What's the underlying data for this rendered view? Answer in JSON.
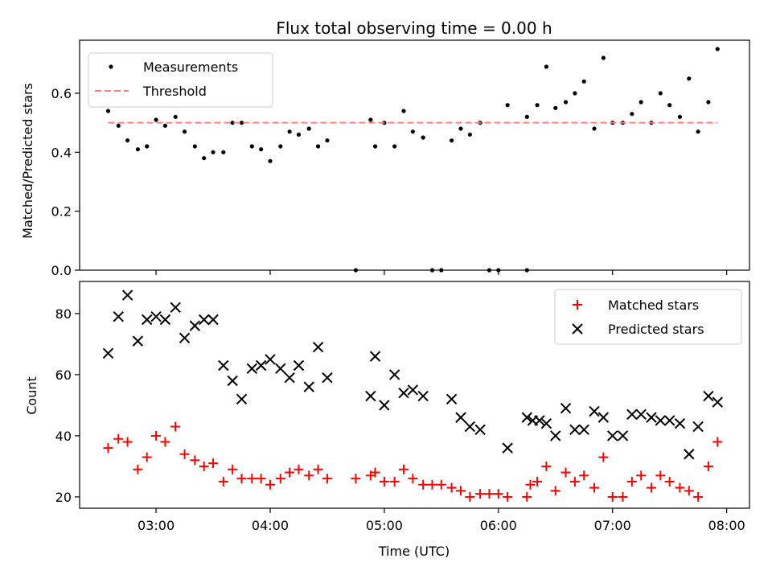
{
  "chart_data": [
    {
      "type": "scatter",
      "title": "Flux total observing time = 0.00 h",
      "xlabel": "",
      "ylabel": "Matched/Predicted stars",
      "xlim": [
        2.33,
        8.2
      ],
      "ylim": [
        0,
        0.78
      ],
      "yticks": [
        0.0,
        0.2,
        0.4,
        0.6
      ],
      "ytick_labels": [
        "0.0",
        "0.2",
        "0.4",
        "0.6"
      ],
      "xticks": [
        3,
        4,
        5,
        6,
        7,
        8
      ],
      "legend": {
        "position": "top-left",
        "entries": [
          "Measurements",
          "Threshold"
        ]
      },
      "colors": {
        "points": "#000000",
        "threshold": "#ff7f7f"
      },
      "series": [
        {
          "name": "Measurements",
          "marker": "dot",
          "points": [
            [
              2.58,
              0.54
            ],
            [
              2.67,
              0.49
            ],
            [
              2.75,
              0.44
            ],
            [
              2.84,
              0.41
            ],
            [
              2.92,
              0.42
            ],
            [
              3.0,
              0.51
            ],
            [
              3.08,
              0.49
            ],
            [
              3.17,
              0.52
            ],
            [
              3.25,
              0.47
            ],
            [
              3.34,
              0.42
            ],
            [
              3.42,
              0.38
            ],
            [
              3.5,
              0.4
            ],
            [
              3.59,
              0.4
            ],
            [
              3.67,
              0.5
            ],
            [
              3.75,
              0.5
            ],
            [
              3.84,
              0.42
            ],
            [
              3.92,
              0.41
            ],
            [
              4.0,
              0.37
            ],
            [
              4.09,
              0.42
            ],
            [
              4.17,
              0.47
            ],
            [
              4.25,
              0.46
            ],
            [
              4.34,
              0.48
            ],
            [
              4.42,
              0.42
            ],
            [
              4.5,
              0.44
            ],
            [
              4.75,
              0.0
            ],
            [
              4.88,
              0.51
            ],
            [
              4.92,
              0.42
            ],
            [
              5.0,
              0.5
            ],
            [
              5.09,
              0.42
            ],
            [
              5.17,
              0.54
            ],
            [
              5.25,
              0.47
            ],
            [
              5.34,
              0.45
            ],
            [
              5.42,
              0.0
            ],
            [
              5.5,
              0.0
            ],
            [
              5.59,
              0.44
            ],
            [
              5.67,
              0.48
            ],
            [
              5.75,
              0.46
            ],
            [
              5.84,
              0.5
            ],
            [
              5.92,
              0.0
            ],
            [
              6.0,
              0.0
            ],
            [
              6.08,
              0.56
            ],
            [
              6.25,
              0.0
            ],
            [
              6.25,
              0.52
            ],
            [
              6.34,
              0.56
            ],
            [
              6.42,
              0.69
            ],
            [
              6.5,
              0.55
            ],
            [
              6.59,
              0.57
            ],
            [
              6.67,
              0.6
            ],
            [
              6.75,
              0.64
            ],
            [
              6.84,
              0.48
            ],
            [
              6.92,
              0.72
            ],
            [
              7.0,
              0.5
            ],
            [
              7.09,
              0.5
            ],
            [
              7.17,
              0.53
            ],
            [
              7.25,
              0.57
            ],
            [
              7.34,
              0.5
            ],
            [
              7.42,
              0.6
            ],
            [
              7.5,
              0.56
            ],
            [
              7.59,
              0.52
            ],
            [
              7.67,
              0.65
            ],
            [
              7.75,
              0.47
            ],
            [
              7.84,
              0.57
            ],
            [
              7.92,
              0.75
            ]
          ]
        },
        {
          "name": "Threshold",
          "style": "dashed-line",
          "x": [
            2.58,
            7.92
          ],
          "y": [
            0.5,
            0.5
          ]
        }
      ]
    },
    {
      "type": "scatter",
      "title": "",
      "xlabel": "Time (UTC)",
      "ylabel": "Count",
      "xlim": [
        2.33,
        8.2
      ],
      "ylim": [
        16.3,
        90.5
      ],
      "yticks": [
        20,
        40,
        60,
        80
      ],
      "ytick_labels": [
        "20",
        "40",
        "60",
        "80"
      ],
      "xticks": [
        3,
        4,
        5,
        6,
        7,
        8
      ],
      "xtick_labels": [
        "03:00",
        "04:00",
        "05:00",
        "06:00",
        "07:00",
        "08:00"
      ],
      "legend": {
        "position": "top-right",
        "entries": [
          "Matched stars",
          "Predicted stars"
        ]
      },
      "colors": {
        "matched": "#ff0000",
        "predicted": "#000000"
      },
      "series": [
        {
          "name": "Matched stars",
          "marker": "plus",
          "points": [
            [
              2.58,
              36
            ],
            [
              2.67,
              39
            ],
            [
              2.75,
              38
            ],
            [
              2.84,
              29
            ],
            [
              2.92,
              33
            ],
            [
              3.0,
              40
            ],
            [
              3.08,
              38
            ],
            [
              3.17,
              43
            ],
            [
              3.25,
              34
            ],
            [
              3.34,
              32
            ],
            [
              3.42,
              30
            ],
            [
              3.5,
              31
            ],
            [
              3.59,
              25
            ],
            [
              3.67,
              29
            ],
            [
              3.75,
              26
            ],
            [
              3.84,
              26
            ],
            [
              3.92,
              26
            ],
            [
              4.0,
              24
            ],
            [
              4.09,
              26
            ],
            [
              4.17,
              28
            ],
            [
              4.25,
              29
            ],
            [
              4.34,
              27
            ],
            [
              4.42,
              29
            ],
            [
              4.5,
              26
            ],
            [
              4.75,
              26
            ],
            [
              4.88,
              27
            ],
            [
              4.92,
              28
            ],
            [
              5.0,
              25
            ],
            [
              5.09,
              25
            ],
            [
              5.17,
              29
            ],
            [
              5.25,
              26
            ],
            [
              5.34,
              24
            ],
            [
              5.42,
              24
            ],
            [
              5.5,
              24
            ],
            [
              5.59,
              23
            ],
            [
              5.67,
              22
            ],
            [
              5.75,
              20
            ],
            [
              5.84,
              21
            ],
            [
              5.92,
              21
            ],
            [
              6.0,
              21
            ],
            [
              6.08,
              20
            ],
            [
              6.25,
              20
            ],
            [
              6.28,
              24
            ],
            [
              6.34,
              25
            ],
            [
              6.42,
              30
            ],
            [
              6.5,
              22
            ],
            [
              6.59,
              28
            ],
            [
              6.67,
              25
            ],
            [
              6.75,
              27
            ],
            [
              6.84,
              23
            ],
            [
              6.92,
              33
            ],
            [
              7.0,
              20
            ],
            [
              7.09,
              20
            ],
            [
              7.17,
              25
            ],
            [
              7.25,
              27
            ],
            [
              7.34,
              23
            ],
            [
              7.42,
              27
            ],
            [
              7.5,
              25
            ],
            [
              7.59,
              23
            ],
            [
              7.67,
              22
            ],
            [
              7.75,
              20
            ],
            [
              7.84,
              30
            ],
            [
              7.92,
              38
            ]
          ]
        },
        {
          "name": "Predicted stars",
          "marker": "x",
          "points": [
            [
              2.58,
              67
            ],
            [
              2.67,
              79
            ],
            [
              2.75,
              86
            ],
            [
              2.84,
              71
            ],
            [
              2.92,
              78
            ],
            [
              3.0,
              79
            ],
            [
              3.08,
              78
            ],
            [
              3.17,
              82
            ],
            [
              3.25,
              72
            ],
            [
              3.34,
              76
            ],
            [
              3.42,
              78
            ],
            [
              3.5,
              78
            ],
            [
              3.59,
              63
            ],
            [
              3.67,
              58
            ],
            [
              3.75,
              52
            ],
            [
              3.84,
              62
            ],
            [
              3.92,
              63
            ],
            [
              4.0,
              65
            ],
            [
              4.09,
              62
            ],
            [
              4.17,
              59
            ],
            [
              4.25,
              63
            ],
            [
              4.34,
              56
            ],
            [
              4.42,
              69
            ],
            [
              4.5,
              59
            ],
            [
              4.88,
              53
            ],
            [
              4.92,
              66
            ],
            [
              5.0,
              50
            ],
            [
              5.09,
              60
            ],
            [
              5.17,
              54
            ],
            [
              5.25,
              55
            ],
            [
              5.34,
              53
            ],
            [
              5.59,
              52
            ],
            [
              5.67,
              46
            ],
            [
              5.75,
              43
            ],
            [
              5.84,
              42
            ],
            [
              6.08,
              36
            ],
            [
              6.25,
              46
            ],
            [
              6.3,
              45
            ],
            [
              6.36,
              45
            ],
            [
              6.42,
              44
            ],
            [
              6.5,
              40
            ],
            [
              6.59,
              49
            ],
            [
              6.67,
              42
            ],
            [
              6.75,
              42
            ],
            [
              6.84,
              48
            ],
            [
              6.92,
              46
            ],
            [
              7.0,
              40
            ],
            [
              7.09,
              40
            ],
            [
              7.17,
              47
            ],
            [
              7.25,
              47
            ],
            [
              7.34,
              46
            ],
            [
              7.42,
              45
            ],
            [
              7.5,
              45
            ],
            [
              7.59,
              44
            ],
            [
              7.67,
              34
            ],
            [
              7.75,
              43
            ],
            [
              7.84,
              53
            ],
            [
              7.92,
              51
            ]
          ]
        }
      ]
    }
  ]
}
